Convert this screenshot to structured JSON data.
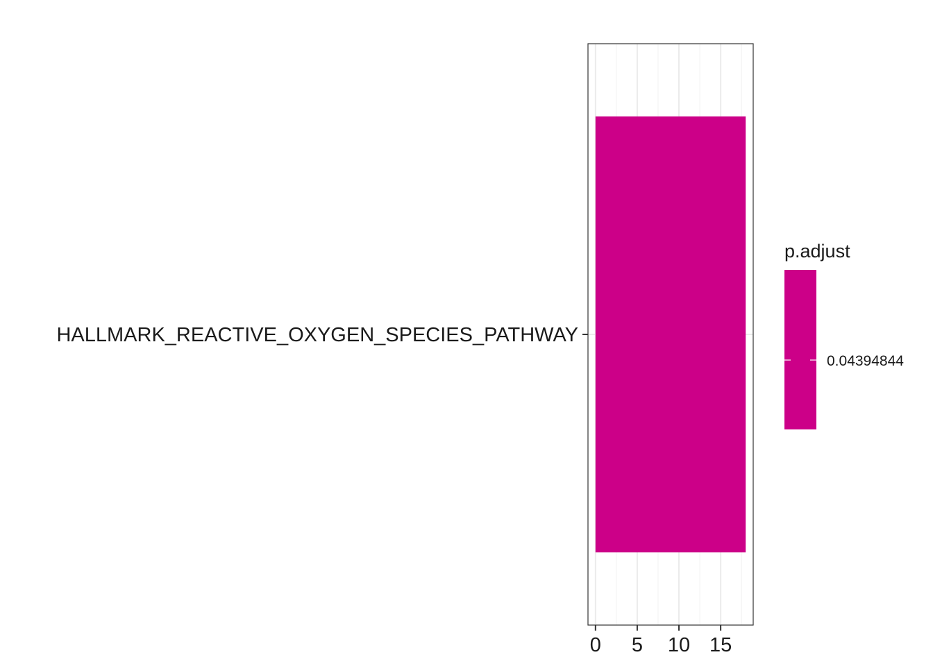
{
  "chart_data": {
    "type": "bar",
    "orientation": "horizontal",
    "categories": [
      "HALLMARK_REACTIVE_OXYGEN_SPECIES_PATHWAY"
    ],
    "values": [
      18
    ],
    "title": "",
    "xlabel": "",
    "ylabel": "",
    "xlim": [
      -0.9,
      18.9
    ],
    "x_ticks": [
      0,
      5,
      10,
      15
    ],
    "x_tick_labels": [
      "0",
      "5",
      "10",
      "15"
    ],
    "grid": true,
    "legend": {
      "title": "p.adjust",
      "placement": "right",
      "labels": [
        "0.04394844"
      ]
    },
    "colors": {
      "bar": "#CC0088",
      "panel_border": "#333333",
      "grid_major": "#EBEBEB",
      "grid_minor": "#F4F4F4",
      "text": "#1a1a1a"
    }
  }
}
